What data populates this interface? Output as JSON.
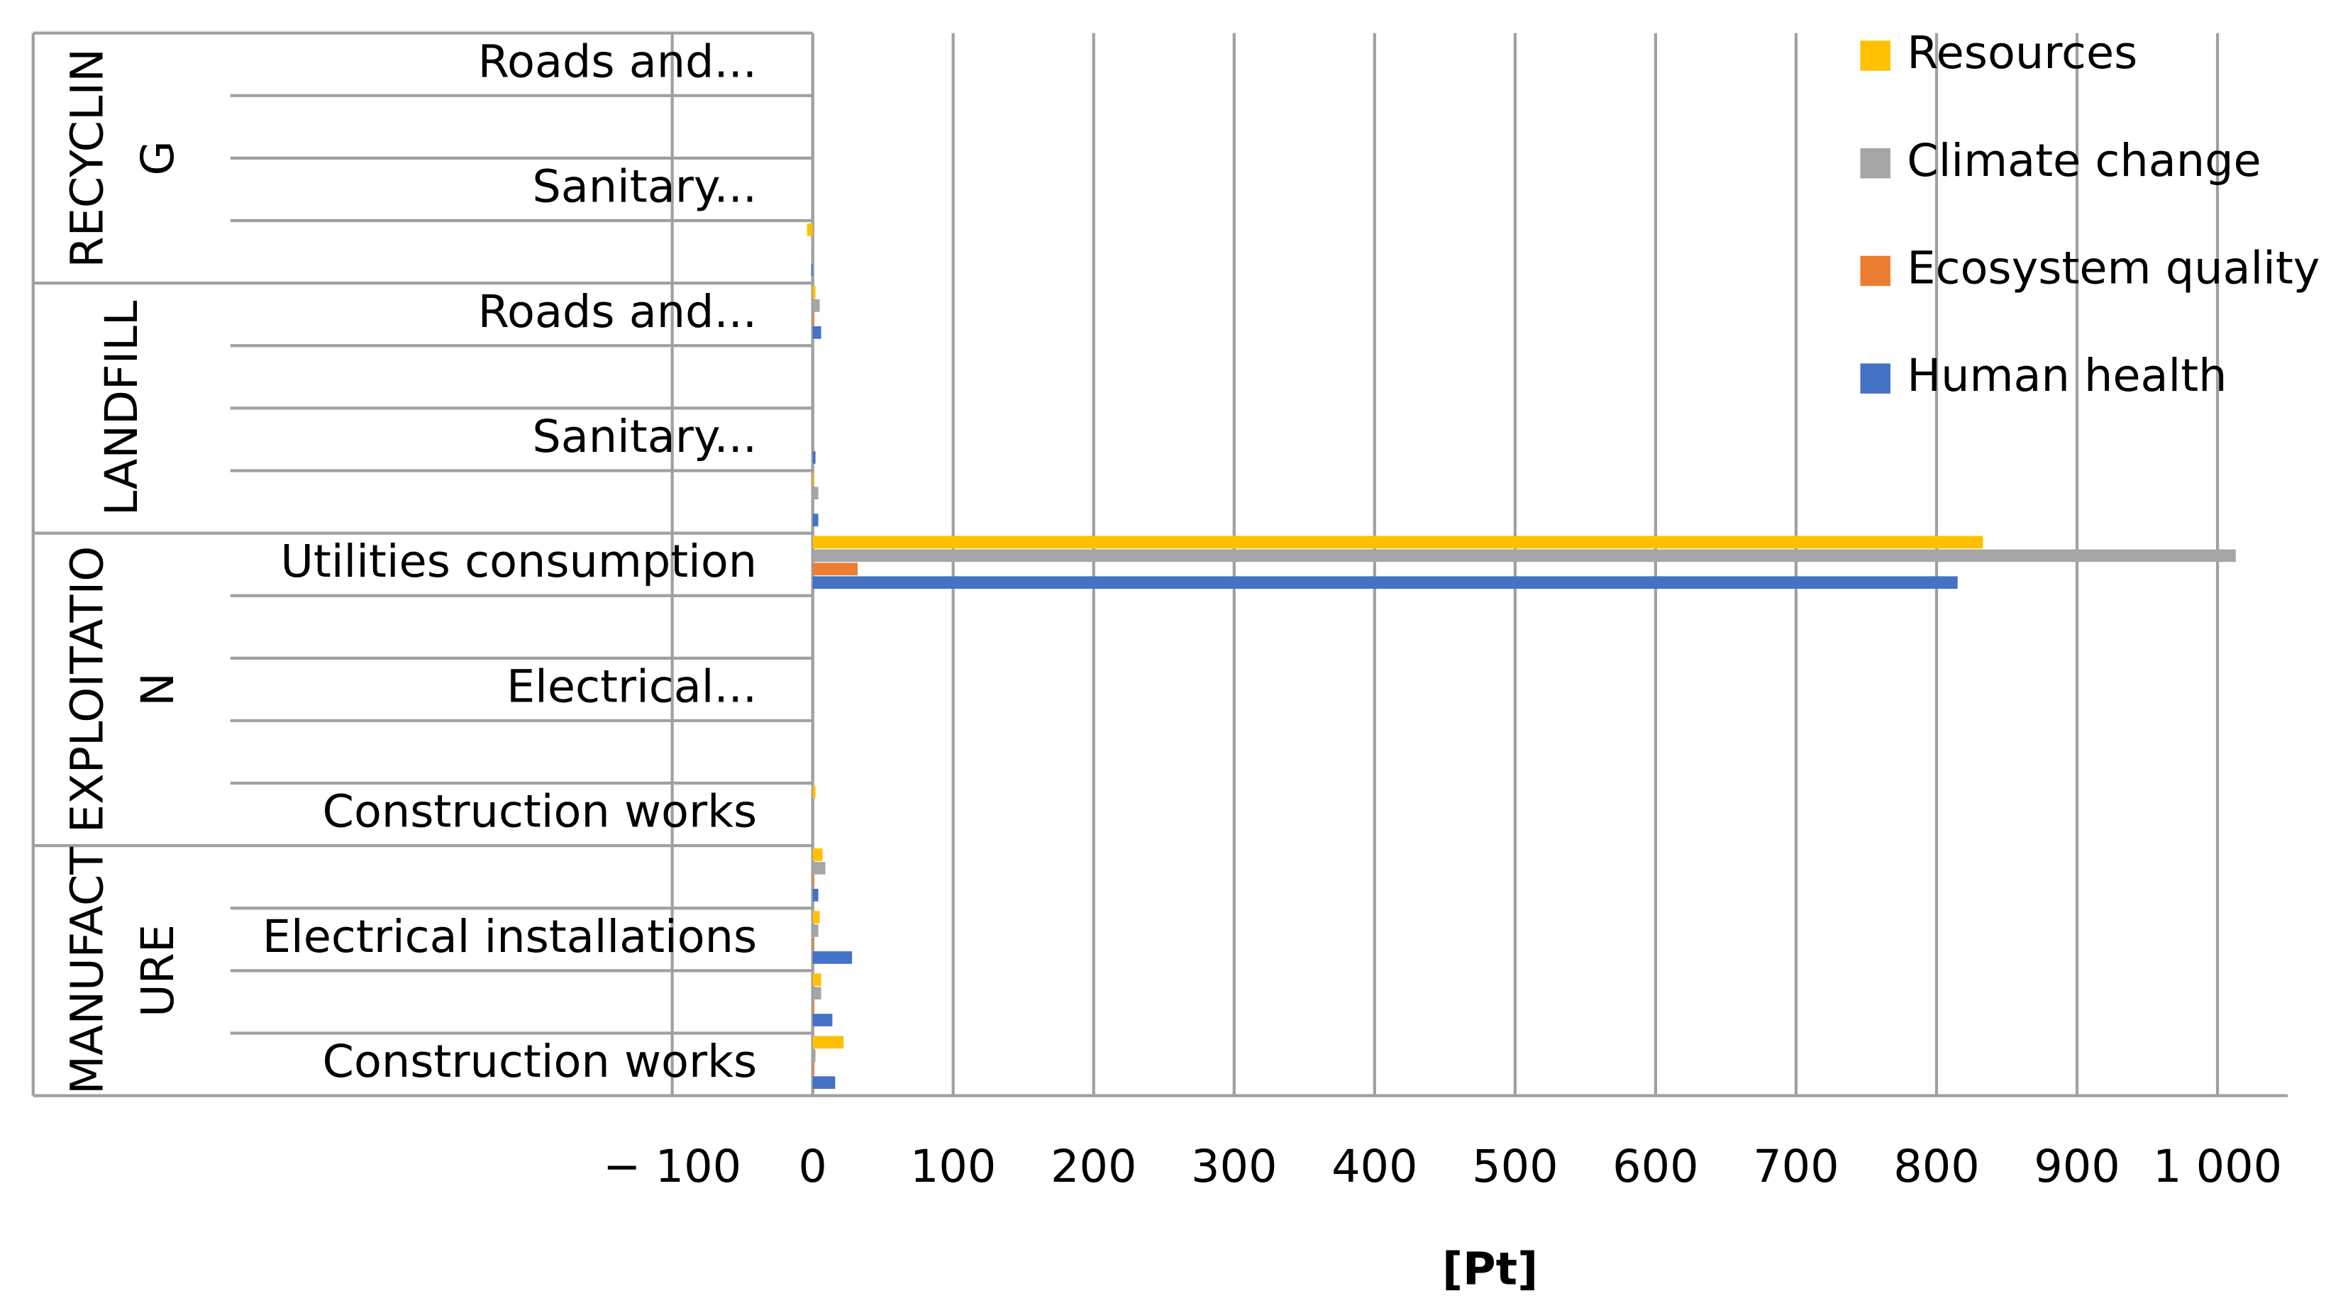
{
  "chart_data": {
    "type": "bar",
    "orientation": "horizontal",
    "x_label": "[Pt]",
    "groups": [
      {
        "label": "RECYCLING",
        "categories": [
          "Roads and...",
          null,
          "Sanitary...",
          null
        ]
      },
      {
        "label": "LANDFILL",
        "categories": [
          "Roads and...",
          null,
          "Sanitary...",
          null
        ]
      },
      {
        "label": "EXPLOITATION",
        "categories": [
          "Utilities consumption",
          null,
          "Electrical...",
          null,
          "Construction works"
        ]
      },
      {
        "label": "MANUFACTURE",
        "categories": [
          null,
          "Electrical installations",
          null,
          "Construction works"
        ]
      }
    ],
    "series": [
      {
        "name": "Human health",
        "color": "#4472c4",
        "values": [
          0,
          0,
          0,
          -1,
          6,
          0,
          2,
          4,
          815,
          0,
          0,
          0,
          0,
          4,
          28,
          14,
          16
        ]
      },
      {
        "name": "Ecosystem quality",
        "color": "#ed7d31",
        "values": [
          0,
          0,
          0,
          0,
          1,
          0,
          0,
          0,
          32,
          0,
          0,
          0,
          0,
          1,
          1,
          1,
          1
        ]
      },
      {
        "name": "Climate change",
        "color": "#a5a5a5",
        "values": [
          0,
          0,
          0,
          -1,
          5,
          0,
          0,
          4,
          1013,
          0,
          0,
          0,
          0,
          9,
          4,
          6,
          2
        ]
      },
      {
        "name": "Resources",
        "color": "#ffc000",
        "values": [
          0,
          0,
          0,
          -4,
          2,
          0,
          0,
          1,
          833,
          0,
          0,
          0,
          2,
          7,
          5,
          6,
          22
        ]
      }
    ],
    "xlim": [
      -100,
      1050
    ],
    "xticks": [
      {
        "value": -100,
        "label": "− 100"
      },
      0,
      100,
      200,
      300,
      400,
      500,
      600,
      700,
      800,
      900,
      {
        "value": 1000,
        "label": "1 000"
      }
    ],
    "grid": true,
    "legend": "top-right"
  }
}
